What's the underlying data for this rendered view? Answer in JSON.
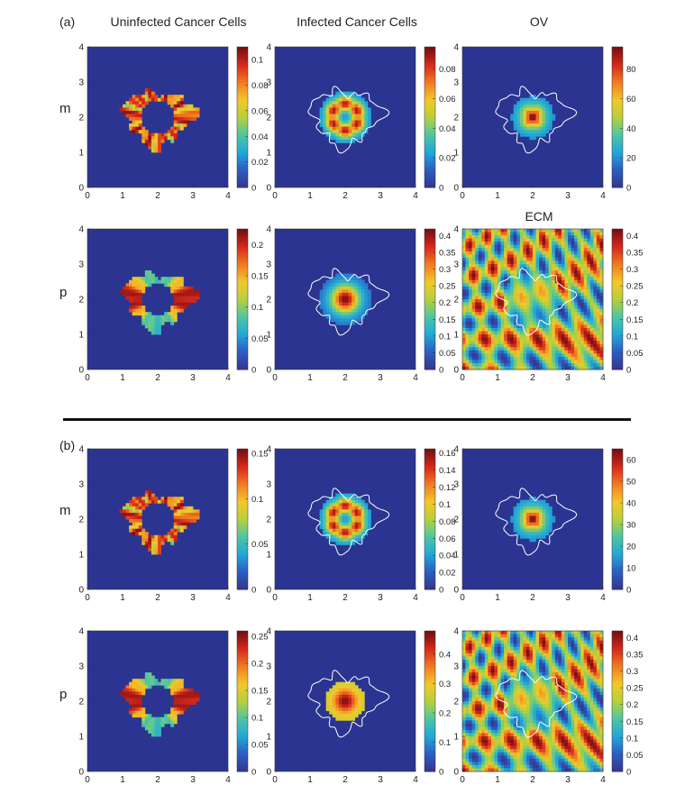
{
  "headers": {
    "col1": "Uninfected Cancer Cells",
    "col2": "Infected Cancer Cells",
    "col3": "OV",
    "ecm": "ECM"
  },
  "panel_labels": {
    "a": "(a)",
    "b": "(b)"
  },
  "row_labels": {
    "a_m": "m",
    "a_p": "p",
    "b_m": "m",
    "b_p": "p"
  },
  "colors": {
    "background_field": "#2b3591",
    "contour": "#ffffff",
    "colormap": [
      "#35378f",
      "#2c5fc4",
      "#22a8d6",
      "#4fc6a3",
      "#b6d03b",
      "#f2c82b",
      "#f07f22",
      "#d92b1c",
      "#7a0f12"
    ]
  },
  "chart_data": [
    {
      "type": "heatmap",
      "title": "Uninfected Cancer Cells",
      "panel": "(a)",
      "row": "m",
      "field": "uninfected",
      "xlim": [
        0,
        4
      ],
      "ylim": [
        0,
        4
      ],
      "x_ticks": [
        "0",
        "1",
        "2",
        "3",
        "4"
      ],
      "y_ticks": [
        "0",
        "1",
        "2",
        "3",
        "4"
      ],
      "cmax": 0.11,
      "cbar_ticks": [
        "0",
        "0.02",
        "0.04",
        "0.06",
        "0.08",
        "0.1"
      ],
      "cbar_values": [
        0,
        0.02,
        0.04,
        0.06,
        0.08,
        0.1
      ]
    },
    {
      "type": "heatmap",
      "title": "Infected Cancer Cells",
      "panel": "(a)",
      "row": "m",
      "field": "infected",
      "xlim": [
        0,
        4
      ],
      "ylim": [
        0,
        4
      ],
      "x_ticks": [
        "0",
        "1",
        "2",
        "3",
        "4"
      ],
      "y_ticks": [
        "0",
        "1",
        "2",
        "3",
        "4"
      ],
      "cmax": 0.095,
      "cbar_ticks": [
        "0",
        "0.02",
        "0.04",
        "0.06",
        "0.08"
      ],
      "cbar_values": [
        0,
        0.02,
        0.04,
        0.06,
        0.08
      ]
    },
    {
      "type": "heatmap",
      "title": "OV",
      "panel": "(a)",
      "row": "m",
      "field": "ov",
      "xlim": [
        0,
        4
      ],
      "ylim": [
        0,
        4
      ],
      "x_ticks": [
        "0",
        "1",
        "2",
        "3",
        "4"
      ],
      "y_ticks": [
        "0",
        "1",
        "2",
        "3",
        "4"
      ],
      "cmax": 95,
      "cbar_ticks": [
        "0",
        "20",
        "40",
        "60",
        "80"
      ],
      "cbar_values": [
        0,
        20,
        40,
        60,
        80
      ]
    },
    {
      "type": "heatmap",
      "title": "Uninfected Cancer Cells",
      "panel": "(a)",
      "row": "p",
      "field": "uninfected_p",
      "xlim": [
        0,
        4
      ],
      "ylim": [
        0,
        4
      ],
      "x_ticks": [
        "0",
        "1",
        "2",
        "3",
        "4"
      ],
      "y_ticks": [
        "0",
        "1",
        "2",
        "3",
        "4"
      ],
      "cmax": 0.225,
      "cbar_ticks": [
        "0",
        "0.05",
        "0.1",
        "0.15",
        "0.2"
      ],
      "cbar_values": [
        0,
        0.05,
        0.1,
        0.15,
        0.2
      ]
    },
    {
      "type": "heatmap",
      "title": "Infected Cancer Cells",
      "panel": "(a)",
      "row": "p",
      "field": "infected_p",
      "xlim": [
        0,
        4
      ],
      "ylim": [
        0,
        4
      ],
      "x_ticks": [
        "0",
        "1",
        "2",
        "3",
        "4"
      ],
      "y_ticks": [
        "0",
        "1",
        "2",
        "3",
        "4"
      ],
      "cmax": 0.42,
      "cbar_ticks": [
        "0",
        "0.05",
        "0.1",
        "0.15",
        "0.2",
        "0.25",
        "0.3",
        "0.35",
        "0.4"
      ],
      "cbar_values": [
        0,
        0.05,
        0.1,
        0.15,
        0.2,
        0.25,
        0.3,
        0.35,
        0.4
      ]
    },
    {
      "type": "heatmap",
      "title": "ECM",
      "panel": "(a)",
      "row": "p",
      "field": "ecm",
      "xlim": [
        0,
        4
      ],
      "ylim": [
        0,
        4
      ],
      "x_ticks": [
        "0",
        "1",
        "2",
        "3",
        "4"
      ],
      "y_ticks": [
        "0",
        "1",
        "2",
        "3",
        "4"
      ],
      "cmax": 0.42,
      "cbar_ticks": [
        "0",
        "0.05",
        "0.1",
        "0.15",
        "0.2",
        "0.25",
        "0.3",
        "0.35",
        "0.4"
      ],
      "cbar_values": [
        0,
        0.05,
        0.1,
        0.15,
        0.2,
        0.25,
        0.3,
        0.35,
        0.4
      ]
    },
    {
      "type": "heatmap",
      "title": "Uninfected Cancer Cells",
      "panel": "(b)",
      "row": "m",
      "field": "uninfected",
      "xlim": [
        0,
        4
      ],
      "ylim": [
        0,
        4
      ],
      "x_ticks": [
        "0",
        "1",
        "2",
        "3",
        "4"
      ],
      "y_ticks": [
        "0",
        "1",
        "2",
        "3",
        "4"
      ],
      "cmax": 0.155,
      "cbar_ticks": [
        "0",
        "0.05",
        "0.1",
        "0.15"
      ],
      "cbar_values": [
        0,
        0.05,
        0.1,
        0.15
      ]
    },
    {
      "type": "heatmap",
      "title": "Infected Cancer Cells",
      "panel": "(b)",
      "row": "m",
      "field": "infected",
      "xlim": [
        0,
        4
      ],
      "ylim": [
        0,
        4
      ],
      "x_ticks": [
        "0",
        "1",
        "2",
        "3",
        "4"
      ],
      "y_ticks": [
        "0",
        "1",
        "2",
        "3",
        "4"
      ],
      "cmax": 0.165,
      "cbar_ticks": [
        "0",
        "0.02",
        "0.04",
        "0.06",
        "0.08",
        "0.1",
        "0.12",
        "0.14",
        "0.16"
      ],
      "cbar_values": [
        0,
        0.02,
        0.04,
        0.06,
        0.08,
        0.1,
        0.12,
        0.14,
        0.16
      ]
    },
    {
      "type": "heatmap",
      "title": "OV",
      "panel": "(b)",
      "row": "m",
      "field": "ov",
      "xlim": [
        0,
        4
      ],
      "ylim": [
        0,
        4
      ],
      "x_ticks": [
        "0",
        "1",
        "2",
        "3",
        "4"
      ],
      "y_ticks": [
        "0",
        "1",
        "2",
        "3",
        "4"
      ],
      "cmax": 65,
      "cbar_ticks": [
        "0",
        "10",
        "20",
        "30",
        "40",
        "50",
        "60"
      ],
      "cbar_values": [
        0,
        10,
        20,
        30,
        40,
        50,
        60
      ]
    },
    {
      "type": "heatmap",
      "title": "Uninfected Cancer Cells",
      "panel": "(b)",
      "row": "p",
      "field": "uninfected_p",
      "xlim": [
        0,
        4
      ],
      "ylim": [
        0,
        4
      ],
      "x_ticks": [
        "0",
        "1",
        "2",
        "3",
        "4"
      ],
      "y_ticks": [
        "0",
        "1",
        "2",
        "3",
        "4"
      ],
      "cmax": 0.26,
      "cbar_ticks": [
        "0",
        "0.05",
        "0.1",
        "0.15",
        "0.2",
        "0.25"
      ],
      "cbar_values": [
        0,
        0.05,
        0.1,
        0.15,
        0.2,
        0.25
      ]
    },
    {
      "type": "heatmap",
      "title": "Infected Cancer Cells",
      "panel": "(b)",
      "row": "p",
      "field": "infected_disc",
      "xlim": [
        0,
        4
      ],
      "ylim": [
        0,
        4
      ],
      "x_ticks": [
        "0",
        "1",
        "2",
        "3",
        "4"
      ],
      "y_ticks": [
        "0",
        "1",
        "2",
        "3",
        "4"
      ],
      "cmax": 0.48,
      "cbar_ticks": [
        "0",
        "0.1",
        "0.2",
        "0.3",
        "0.4"
      ],
      "cbar_values": [
        0,
        0.1,
        0.2,
        0.3,
        0.4
      ]
    },
    {
      "type": "heatmap",
      "title": "ECM",
      "panel": "(b)",
      "row": "p",
      "field": "ecm",
      "xlim": [
        0,
        4
      ],
      "ylim": [
        0,
        4
      ],
      "x_ticks": [
        "0",
        "1",
        "2",
        "3",
        "4"
      ],
      "y_ticks": [
        "0",
        "1",
        "2",
        "3",
        "4"
      ],
      "cmax": 0.42,
      "cbar_ticks": [
        "0",
        "0.05",
        "0.1",
        "0.15",
        "0.2",
        "0.25",
        "0.3",
        "0.35",
        "0.4"
      ],
      "cbar_values": [
        0,
        0.05,
        0.1,
        0.15,
        0.2,
        0.25,
        0.3,
        0.35,
        0.4
      ]
    }
  ]
}
